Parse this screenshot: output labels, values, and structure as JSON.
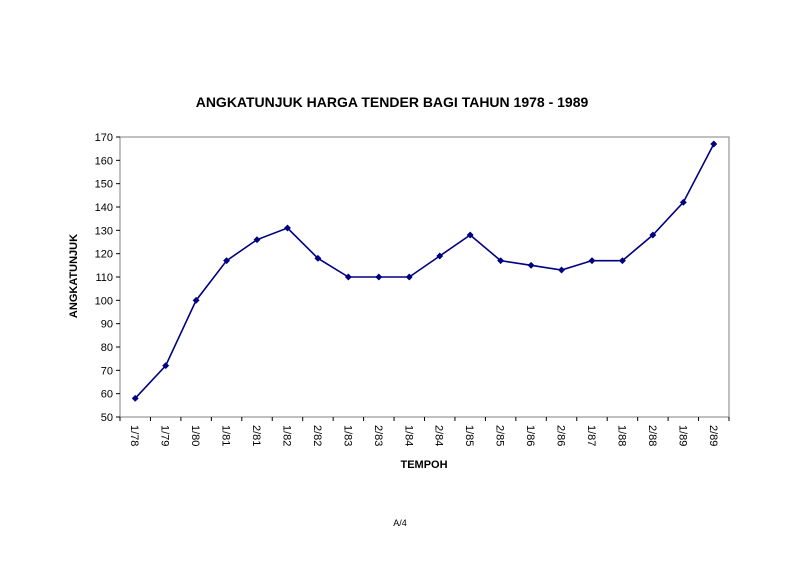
{
  "chart_data": {
    "type": "line",
    "title": "ANGKATUNJUK HARGA TENDER BAGI TAHUN 1978 - 1989",
    "xlabel": "TEMPOH",
    "ylabel": "ANGKATUNJUK",
    "ylim": [
      50,
      170
    ],
    "yticks": [
      50,
      60,
      70,
      80,
      90,
      100,
      110,
      120,
      130,
      140,
      150,
      160,
      170
    ],
    "grid": false,
    "legend": "none",
    "categories": [
      "1/78",
      "1/79",
      "1/80",
      "1/81",
      "2/81",
      "1/82",
      "2/82",
      "1/83",
      "2/83",
      "1/84",
      "2/84",
      "1/85",
      "2/85",
      "1/86",
      "2/86",
      "1/87",
      "1/88",
      "2/88",
      "1/89",
      "2/89"
    ],
    "series": [
      {
        "values": [
          58,
          72,
          100,
          117,
          126,
          131,
          118,
          110,
          110,
          110,
          119,
          128,
          117,
          115,
          113,
          117,
          117,
          128,
          142,
          167
        ],
        "color": "#000080"
      }
    ]
  },
  "footer": {
    "page_label": "A/4"
  }
}
